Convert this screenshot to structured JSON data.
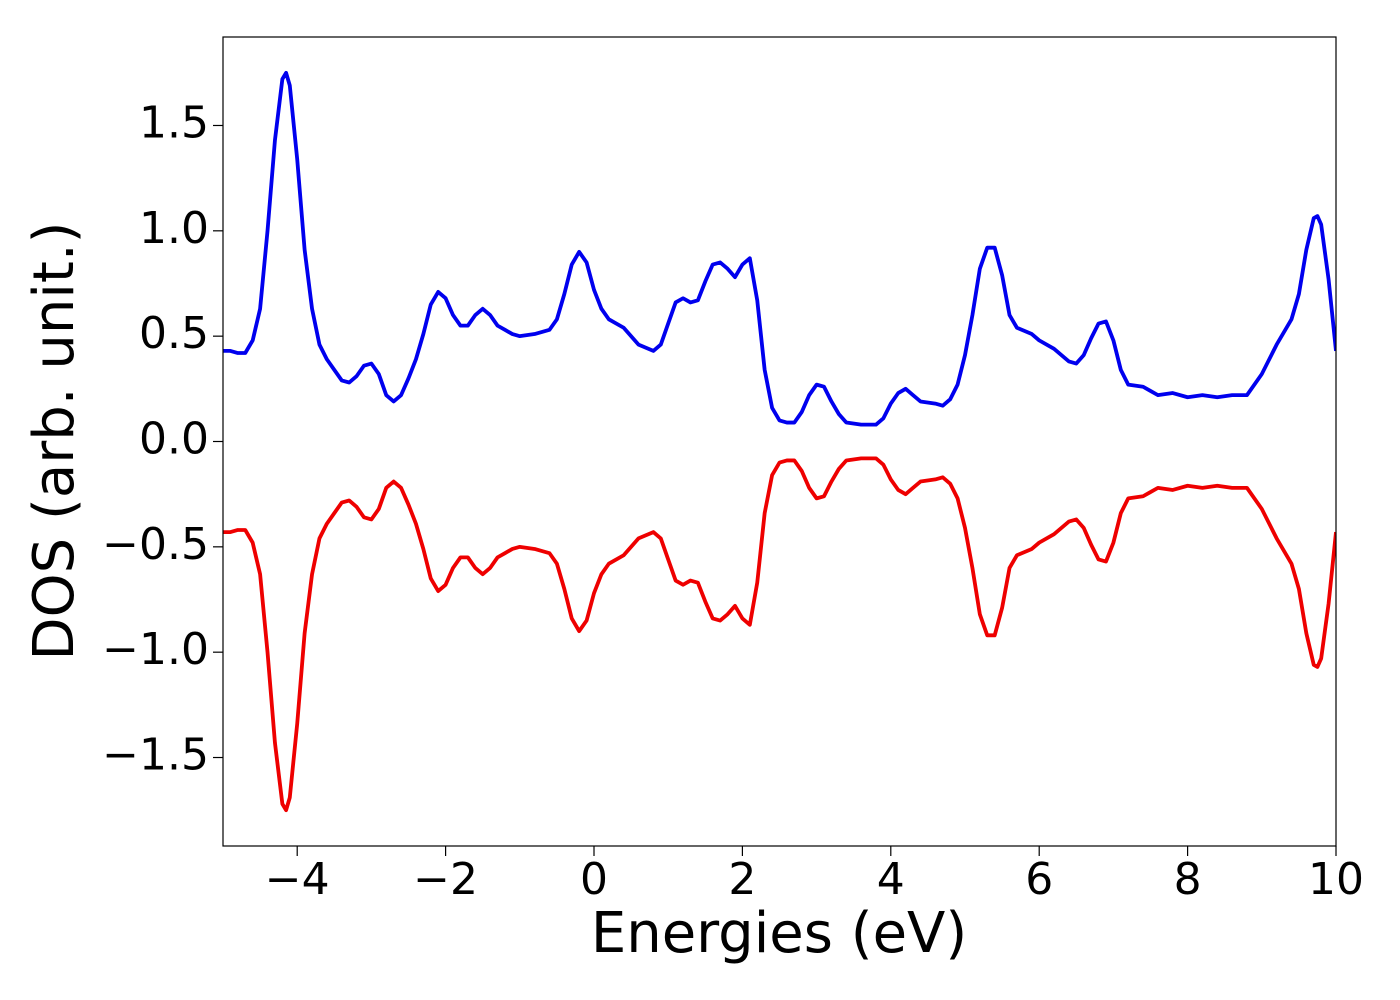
{
  "chart_data": {
    "type": "line",
    "xlabel": "Energies (eV)",
    "ylabel": "DOS (arb. unit.)",
    "x": [
      -5,
      -4.9,
      -4.8,
      -4.7,
      -4.6,
      -4.5,
      -4.4,
      -4.3,
      -4.2,
      -4.15,
      -4.1,
      -4.0,
      -3.9,
      -3.8,
      -3.7,
      -3.6,
      -3.5,
      -3.4,
      -3.3,
      -3.2,
      -3.1,
      -3.0,
      -2.9,
      -2.8,
      -2.7,
      -2.6,
      -2.5,
      -2.4,
      -2.3,
      -2.2,
      -2.1,
      -2.0,
      -1.9,
      -1.8,
      -1.7,
      -1.6,
      -1.5,
      -1.4,
      -1.3,
      -1.2,
      -1.1,
      -1.0,
      -0.8,
      -0.6,
      -0.5,
      -0.4,
      -0.3,
      -0.2,
      -0.1,
      0.0,
      0.1,
      0.2,
      0.4,
      0.6,
      0.8,
      0.9,
      1.0,
      1.1,
      1.2,
      1.3,
      1.4,
      1.5,
      1.6,
      1.7,
      1.8,
      1.9,
      2.0,
      2.1,
      2.2,
      2.3,
      2.4,
      2.5,
      2.6,
      2.7,
      2.8,
      2.9,
      3.0,
      3.1,
      3.2,
      3.3,
      3.4,
      3.6,
      3.8,
      3.9,
      4.0,
      4.1,
      4.2,
      4.3,
      4.4,
      4.6,
      4.7,
      4.8,
      4.9,
      5.0,
      5.1,
      5.2,
      5.3,
      5.4,
      5.5,
      5.6,
      5.7,
      5.9,
      6.0,
      6.2,
      6.4,
      6.5,
      6.6,
      6.7,
      6.8,
      6.9,
      7.0,
      7.1,
      7.2,
      7.4,
      7.5,
      7.6,
      7.8,
      8.0,
      8.2,
      8.4,
      8.6,
      8.8,
      9.0,
      9.2,
      9.4,
      9.5,
      9.6,
      9.7,
      9.75,
      9.8,
      9.9,
      10.0
    ],
    "series": [
      {
        "color": "#0000ee",
        "values": [
          0.43,
          0.43,
          0.42,
          0.42,
          0.48,
          0.63,
          1.0,
          1.43,
          1.72,
          1.75,
          1.69,
          1.34,
          0.91,
          0.63,
          0.46,
          0.39,
          0.34,
          0.29,
          0.28,
          0.31,
          0.36,
          0.37,
          0.32,
          0.22,
          0.19,
          0.22,
          0.3,
          0.39,
          0.51,
          0.65,
          0.71,
          0.68,
          0.6,
          0.55,
          0.55,
          0.6,
          0.63,
          0.6,
          0.55,
          0.53,
          0.51,
          0.5,
          0.51,
          0.53,
          0.58,
          0.7,
          0.84,
          0.9,
          0.85,
          0.72,
          0.63,
          0.58,
          0.54,
          0.46,
          0.43,
          0.46,
          0.56,
          0.66,
          0.68,
          0.66,
          0.67,
          0.76,
          0.84,
          0.85,
          0.82,
          0.78,
          0.84,
          0.87,
          0.67,
          0.34,
          0.16,
          0.1,
          0.09,
          0.09,
          0.14,
          0.22,
          0.27,
          0.26,
          0.19,
          0.13,
          0.09,
          0.08,
          0.08,
          0.11,
          0.18,
          0.23,
          0.25,
          0.22,
          0.19,
          0.18,
          0.17,
          0.2,
          0.27,
          0.41,
          0.6,
          0.82,
          0.92,
          0.92,
          0.79,
          0.6,
          0.54,
          0.51,
          0.48,
          0.44,
          0.38,
          0.37,
          0.41,
          0.49,
          0.56,
          0.57,
          0.48,
          0.34,
          0.27,
          0.26,
          0.24,
          0.22,
          0.23,
          0.21,
          0.22,
          0.21,
          0.22,
          0.22,
          0.32,
          0.46,
          0.58,
          0.7,
          0.91,
          1.06,
          1.07,
          1.03,
          0.77,
          0.43
        ]
      },
      {
        "color": "#ee0000",
        "values": [
          -0.43,
          -0.43,
          -0.42,
          -0.42,
          -0.48,
          -0.63,
          -1.0,
          -1.43,
          -1.72,
          -1.75,
          -1.69,
          -1.34,
          -0.91,
          -0.63,
          -0.46,
          -0.39,
          -0.34,
          -0.29,
          -0.28,
          -0.31,
          -0.36,
          -0.37,
          -0.32,
          -0.22,
          -0.19,
          -0.22,
          -0.3,
          -0.39,
          -0.51,
          -0.65,
          -0.71,
          -0.68,
          -0.6,
          -0.55,
          -0.55,
          -0.6,
          -0.63,
          -0.6,
          -0.55,
          -0.53,
          -0.51,
          -0.5,
          -0.51,
          -0.53,
          -0.58,
          -0.7,
          -0.84,
          -0.9,
          -0.85,
          -0.72,
          -0.63,
          -0.58,
          -0.54,
          -0.46,
          -0.43,
          -0.46,
          -0.56,
          -0.66,
          -0.68,
          -0.66,
          -0.67,
          -0.76,
          -0.84,
          -0.85,
          -0.82,
          -0.78,
          -0.84,
          -0.87,
          -0.67,
          -0.34,
          -0.16,
          -0.1,
          -0.09,
          -0.09,
          -0.14,
          -0.22,
          -0.27,
          -0.26,
          -0.19,
          -0.13,
          -0.09,
          -0.08,
          -0.08,
          -0.11,
          -0.18,
          -0.23,
          -0.25,
          -0.22,
          -0.19,
          -0.18,
          -0.17,
          -0.2,
          -0.27,
          -0.41,
          -0.6,
          -0.82,
          -0.92,
          -0.92,
          -0.79,
          -0.6,
          -0.54,
          -0.51,
          -0.48,
          -0.44,
          -0.38,
          -0.37,
          -0.41,
          -0.49,
          -0.56,
          -0.57,
          -0.48,
          -0.34,
          -0.27,
          -0.26,
          -0.24,
          -0.22,
          -0.23,
          -0.21,
          -0.22,
          -0.21,
          -0.22,
          -0.22,
          -0.32,
          -0.46,
          -0.58,
          -0.7,
          -0.91,
          -1.06,
          -1.07,
          -1.03,
          -0.77,
          -0.43
        ]
      }
    ],
    "xlim": [
      -5,
      10
    ],
    "xticks": [
      {
        "value": -4,
        "label": "−4"
      },
      {
        "value": -2,
        "label": "−2"
      },
      0,
      2,
      4,
      6,
      8,
      10
    ],
    "ylim": [
      -1.92,
      1.92
    ],
    "yticks": [
      {
        "value": -1.5,
        "label": "−1.5"
      },
      {
        "value": -1.0,
        "label": "−1.0"
      },
      {
        "value": -0.5,
        "label": "−0.5"
      },
      {
        "value": 0.0,
        "label": "0.0"
      },
      0.5,
      {
        "value": 1.0,
        "label": "1.0"
      },
      1.5
    ],
    "grid": false
  }
}
